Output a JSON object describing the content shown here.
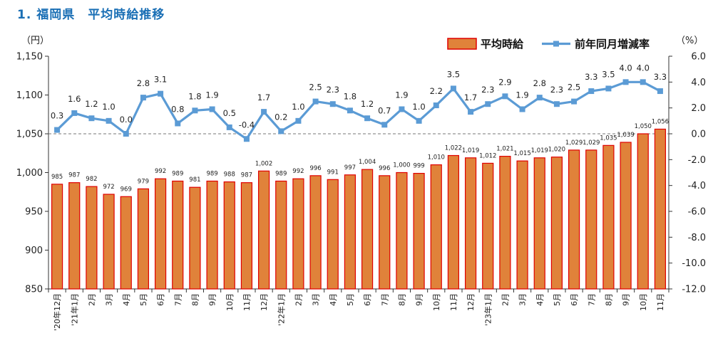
{
  "heading": "1. 福岡県　平均時給推移",
  "chart_data": {
    "type": "bar+line",
    "categories": [
      "'20年12月",
      "'21年1月",
      "2月",
      "3月",
      "4月",
      "5月",
      "6月",
      "7月",
      "8月",
      "9月",
      "10月",
      "11月",
      "12月",
      "'22年1月",
      "2月",
      "3月",
      "4月",
      "5月",
      "6月",
      "7月",
      "8月",
      "9月",
      "10月",
      "11月",
      "12月",
      "'23年1月",
      "2月",
      "3月",
      "4月",
      "5月",
      "6月",
      "7月",
      "8月",
      "9月",
      "10月",
      "11月"
    ],
    "series": [
      {
        "name": "平均時給",
        "type": "bar",
        "axis": "left",
        "color": "#e0823a",
        "edge_color": "#e00000",
        "values": [
          985,
          987,
          982,
          972,
          969,
          979,
          992,
          989,
          981,
          989,
          988,
          987,
          1002,
          989,
          992,
          996,
          991,
          997,
          1004,
          996,
          1000,
          999,
          1010,
          1022,
          1019,
          1012,
          1021,
          1015,
          1019,
          1020,
          1029,
          1029,
          1035,
          1039,
          1050,
          1056
        ],
        "labels": [
          "985",
          "987",
          "982",
          "972",
          "969",
          "979",
          "992",
          "989",
          "981",
          "989",
          "988",
          "987",
          "1,002",
          "989",
          "992",
          "996",
          "991",
          "997",
          "1,004",
          "996",
          "1,000",
          "999",
          "1,010",
          "1,022",
          "1,019",
          "1,012",
          "1,021",
          "1,015",
          "1,019",
          "1,020",
          "1,029",
          "1,029",
          "1,035",
          "1,039",
          "1,050",
          "1,056"
        ]
      },
      {
        "name": "前年同月増減率",
        "type": "line",
        "axis": "right",
        "color": "#5b9bd5",
        "values": [
          0.3,
          1.6,
          1.2,
          1.0,
          0.0,
          2.8,
          3.1,
          0.8,
          1.8,
          1.9,
          0.5,
          -0.4,
          1.7,
          0.2,
          1.0,
          2.5,
          2.3,
          1.8,
          1.2,
          0.7,
          1.9,
          1.0,
          2.2,
          3.5,
          1.7,
          2.3,
          2.9,
          1.9,
          2.8,
          2.3,
          2.5,
          3.3,
          3.5,
          4.0,
          4.0,
          3.3
        ],
        "labels": [
          "0.3",
          "1.6",
          "1.2",
          "1.0",
          "0.0",
          "2.8",
          "3.1",
          "0.8",
          "1.8",
          "1.9",
          "0.5",
          "-0.4",
          "1.7",
          "0.2",
          "1.0",
          "2.5",
          "2.3",
          "1.8",
          "1.2",
          "0.7",
          "1.9",
          "1.0",
          "2.2",
          "3.5",
          "1.7",
          "2.3",
          "2.9",
          "1.9",
          "2.8",
          "2.3",
          "2.5",
          "3.3",
          "3.5",
          "4.0",
          "4.0",
          "3.3"
        ]
      }
    ],
    "y_left": {
      "unit": "（円）",
      "min": 850,
      "max": 1150,
      "step": 50,
      "tick_labels": [
        "850",
        "900",
        "950",
        "1,000",
        "1,050",
        "1,100",
        "1,150"
      ]
    },
    "y_right": {
      "unit": "（%）",
      "min": -12.0,
      "max": 6.0,
      "step": 2.0,
      "tick_labels": [
        "-12.0",
        "-10.0",
        "-8.0",
        "-6.0",
        "-4.0",
        "-2.0",
        "0.0",
        "2.0",
        "4.0",
        "6.0"
      ]
    },
    "zero_reference_line": "dashed at 0.0 (right axis)",
    "legend": {
      "position": "top-right",
      "entries": [
        "平均時給",
        "前年同月増減率"
      ]
    },
    "grid": false
  }
}
